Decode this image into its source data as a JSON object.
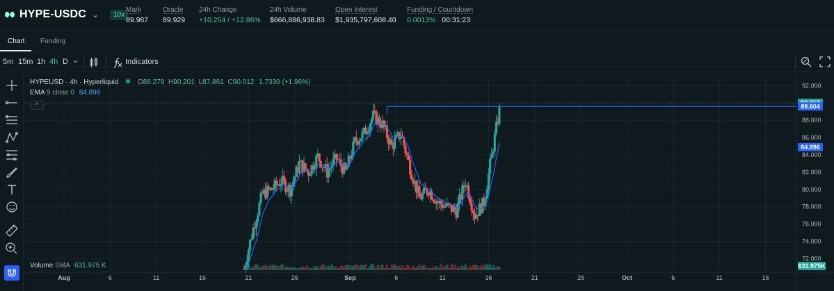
{
  "header": {
    "pair": "HYPE-USDC",
    "leverage": "10x",
    "stats": [
      {
        "label": "Mark",
        "value": "89.987",
        "dotted": true,
        "green": false
      },
      {
        "label": "Oracle",
        "value": "89.929",
        "dotted": true,
        "green": false
      },
      {
        "label": "24h Change",
        "value": "+10.254 / +12.86%",
        "dotted": false,
        "green": true
      },
      {
        "label": "24h Volume",
        "value": "$666,886,938.83",
        "dotted": false,
        "green": false
      },
      {
        "label": "Open Interest",
        "value": "$1,935,797,608.40",
        "dotted": true,
        "green": false
      },
      {
        "label": "Funding / Countdown",
        "value": "0.0013%",
        "value2": "00:31:23",
        "dotted": true,
        "green": true
      }
    ]
  },
  "tabs": [
    {
      "label": "Chart",
      "active": true
    },
    {
      "label": "Funding",
      "active": false
    }
  ],
  "toolbar": {
    "timeframes": [
      {
        "label": "5m",
        "active": false
      },
      {
        "label": "15m",
        "active": false
      },
      {
        "label": "1h",
        "active": false
      },
      {
        "label": "4h",
        "active": true
      },
      {
        "label": "D",
        "active": false
      }
    ],
    "indicators_label": "Indicators"
  },
  "legend": {
    "symbol": "HYPEUSD · 4h · Hyperliquid",
    "o_label": "O",
    "o": "88.279",
    "h_label": "H",
    "h": "90.201",
    "l_label": "L",
    "l": "87.861",
    "c_label": "C",
    "c": "90.012",
    "change": "1.7330 (+1.96%)",
    "ema_label": "EMA",
    "ema_params": "9 close 0",
    "ema_value": "84.896",
    "volume_label": "Volume",
    "volume_sma": "SMA",
    "volume_value": "631.975 K",
    "collapse": "^"
  },
  "chart_data": {
    "type": "candlestick",
    "y_ticks": [
      "92.000",
      "90.000",
      "88.000",
      "86.000",
      "84.000",
      "82.000",
      "80.000",
      "78.000",
      "76.000",
      "74.000",
      "72.000"
    ],
    "x_ticks": [
      "Aug",
      "6",
      "11",
      "16",
      "21",
      "26",
      "Sep",
      "6",
      "11",
      "16",
      "21",
      "26",
      "Oct",
      "6",
      "11",
      "16"
    ],
    "price_labels": [
      {
        "value": "90.012",
        "color": "#26a69a"
      },
      {
        "value": "89.604",
        "color": "#2962ff"
      },
      {
        "value": "84.896",
        "color": "#2962ff"
      }
    ],
    "volume_label": "631.975K",
    "ylim": [
      70.5,
      93
    ],
    "colors": {
      "up": "#26a69a",
      "down": "#ef5350",
      "ema": "#2962ff",
      "grid": "#1a262c"
    },
    "anchors": [
      {
        "t": 20.5,
        "p": 70.8
      },
      {
        "t": 21.5,
        "p": 75.5
      },
      {
        "t": 22.5,
        "p": 79.5
      },
      {
        "t": 23.5,
        "p": 80.0
      },
      {
        "t": 24.5,
        "p": 81.0
      },
      {
        "t": 25.5,
        "p": 80.0
      },
      {
        "t": 26.5,
        "p": 83.0
      },
      {
        "t": 27.5,
        "p": 82.0
      },
      {
        "t": 28.5,
        "p": 83.8
      },
      {
        "t": 29.5,
        "p": 82.0
      },
      {
        "t": 30.5,
        "p": 83.6
      },
      {
        "t": 31.5,
        "p": 82.0
      },
      {
        "t": 32.5,
        "p": 85.5
      },
      {
        "t": 33.5,
        "p": 86.5
      },
      {
        "t": 34.5,
        "p": 88.5
      },
      {
        "t": 35.5,
        "p": 87.5
      },
      {
        "t": 36.5,
        "p": 85.0
      },
      {
        "t": 37.5,
        "p": 86.5
      },
      {
        "t": 38.5,
        "p": 82.5
      },
      {
        "t": 39.5,
        "p": 79.0
      },
      {
        "t": 40.5,
        "p": 80.0
      },
      {
        "t": 41.5,
        "p": 78.5
      },
      {
        "t": 42.5,
        "p": 78.0
      },
      {
        "t": 43.5,
        "p": 77.5
      },
      {
        "t": 44.5,
        "p": 81.0
      },
      {
        "t": 45.5,
        "p": 77.0
      },
      {
        "t": 46.5,
        "p": 78.5
      },
      {
        "t": 47.5,
        "p": 85.0
      },
      {
        "t": 48.3,
        "p": 90.0
      }
    ]
  }
}
